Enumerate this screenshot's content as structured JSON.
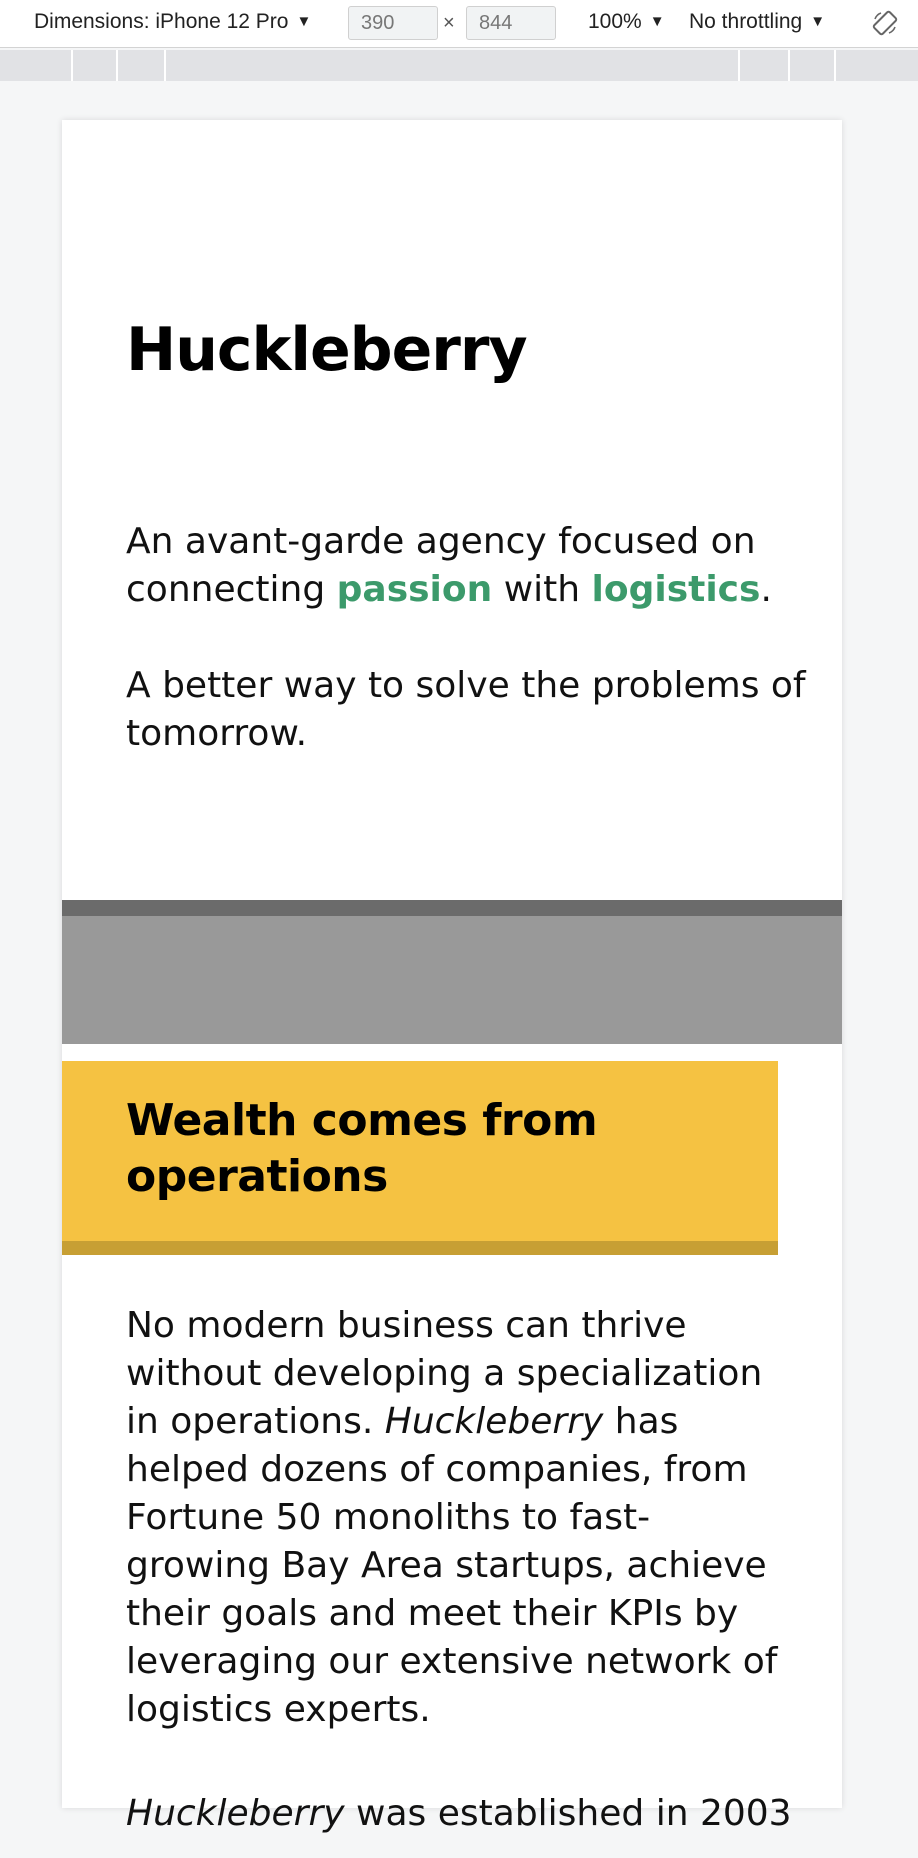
{
  "devtools": {
    "dimensions_label": "Dimensions: iPhone 12 Pro",
    "width_value": "390",
    "height_value": "844",
    "times_symbol": "×",
    "zoom_label": "100%",
    "throttle_label": "No throttling",
    "caret": "▼",
    "rotate_icon": "rotate-icon"
  },
  "site": {
    "title": "Huckleberry",
    "tagline_pre": "An avant-garde agency focused on connecting ",
    "tagline_accent1": "passion",
    "tagline_mid": " with ",
    "tagline_accent2": "logistics",
    "tagline_end": ".",
    "subline": "A better way to solve the problems of tomorrow.",
    "callout_title": "Wealth comes from operations",
    "body1_pre": "No modern business can thrive without developing a specialization in operations. ",
    "body1_em": "Huckleberry",
    "body1_post": " has helped dozens of companies, from Fortune 50 monoliths to fast-growing Bay Area startups, achieve their goals and meet their KPIs by leveraging our extensive network of logistics experts.",
    "body2_em": "Huckleberry",
    "body2_post": " was established in 2003"
  },
  "colors": {
    "accent_green": "#3c9a6b",
    "callout_yellow": "#f5c242",
    "callout_shadow": "#c79f34",
    "placeholder_gray": "#999999",
    "placeholder_dark": "#6b6b6b"
  }
}
